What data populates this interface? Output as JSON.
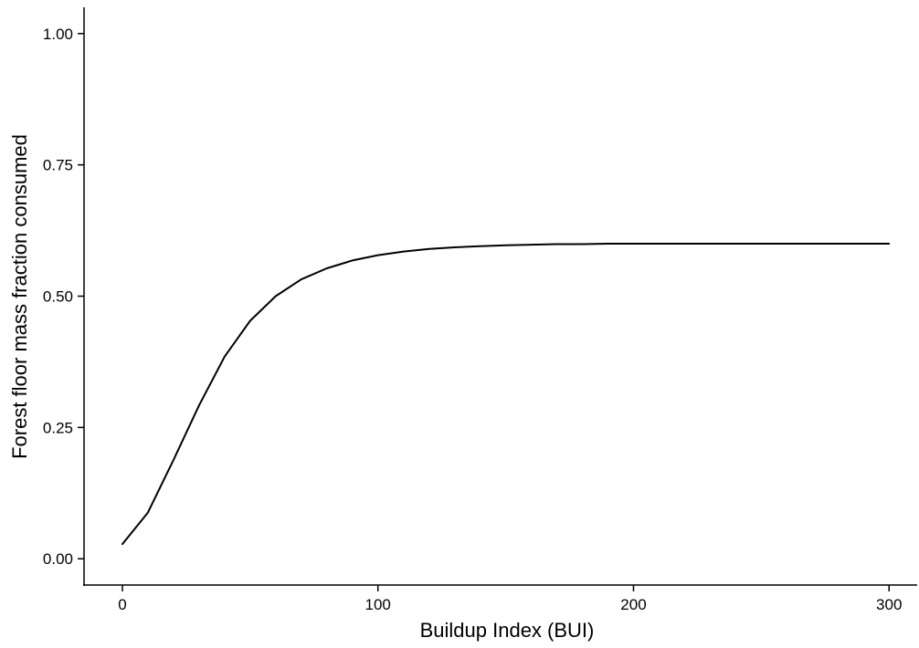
{
  "chart_data": {
    "type": "line",
    "title": "",
    "xlabel": "Buildup Index (BUI)",
    "ylabel": "Forest floor mass fraction consumed",
    "xlim": [
      -15,
      311
    ],
    "ylim": [
      -0.05,
      1.05
    ],
    "xticks": [
      0,
      100,
      200,
      300
    ],
    "xtick_labels": [
      "0",
      "100",
      "200",
      "300"
    ],
    "yticks": [
      0,
      0.25,
      0.5,
      0.75,
      1.0
    ],
    "ytick_labels": [
      "0.00",
      "0.25",
      "0.50",
      "0.75",
      "1.00"
    ],
    "grid": false,
    "legend": "none",
    "line_color": "#000000",
    "series": [
      {
        "x": [
          0,
          10,
          20,
          30,
          40,
          50,
          60,
          70,
          80,
          90,
          100,
          110,
          120,
          130,
          140,
          150,
          160,
          170,
          180,
          190,
          200,
          210,
          220,
          230,
          240,
          250,
          260,
          270,
          280,
          290,
          300
        ],
        "y": [
          0.028,
          0.088,
          0.188,
          0.292,
          0.385,
          0.453,
          0.5,
          0.532,
          0.553,
          0.568,
          0.578,
          0.585,
          0.59,
          0.593,
          0.595,
          0.597,
          0.598,
          0.599,
          0.599,
          0.6,
          0.6,
          0.6,
          0.6,
          0.6,
          0.6,
          0.6,
          0.6,
          0.6,
          0.6,
          0.6,
          0.6
        ]
      }
    ]
  }
}
